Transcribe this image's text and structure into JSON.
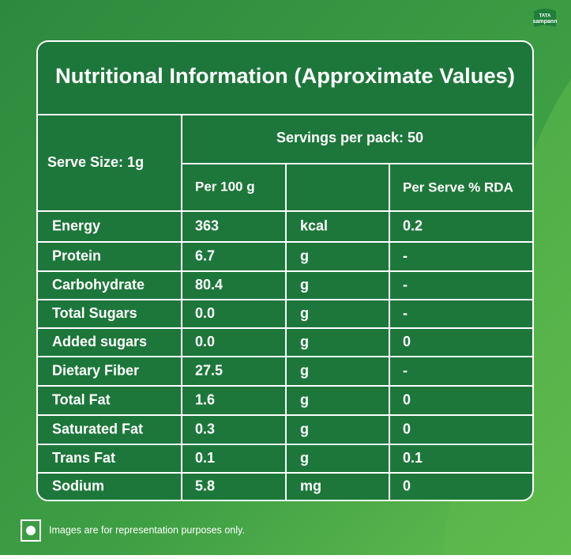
{
  "logo": {
    "line1": "TATA",
    "line2": "sampann"
  },
  "title": "Nutritional Information (Approximate Values)",
  "serve_size": "Serve Size: 1g",
  "servings": "Servings per pack: 50",
  "headers": [
    "Per 100 g",
    "Per Serve % RDA"
  ],
  "table": {
    "rows": [
      [
        "Energy",
        "363",
        "kcal",
        "0.2"
      ],
      [
        "Protein",
        "6.7",
        "g",
        "-"
      ],
      [
        "Carbohydrate",
        "80.4",
        "g",
        "-"
      ],
      [
        "Total Sugars",
        "0.0",
        "g",
        "-"
      ],
      [
        "Added sugars",
        "0.0",
        "g",
        "0"
      ],
      [
        "Dietary Fiber",
        "27.5",
        "g",
        "-"
      ],
      [
        "Total Fat",
        "1.6",
        "g",
        "0"
      ],
      [
        "Saturated Fat",
        "0.3",
        "g",
        "0"
      ],
      [
        "Trans Fat",
        "0.1",
        "g",
        "0.1"
      ],
      [
        "Sodium",
        "5.8",
        "mg",
        "0"
      ]
    ]
  },
  "footer": "Images are for representation purposes only."
}
